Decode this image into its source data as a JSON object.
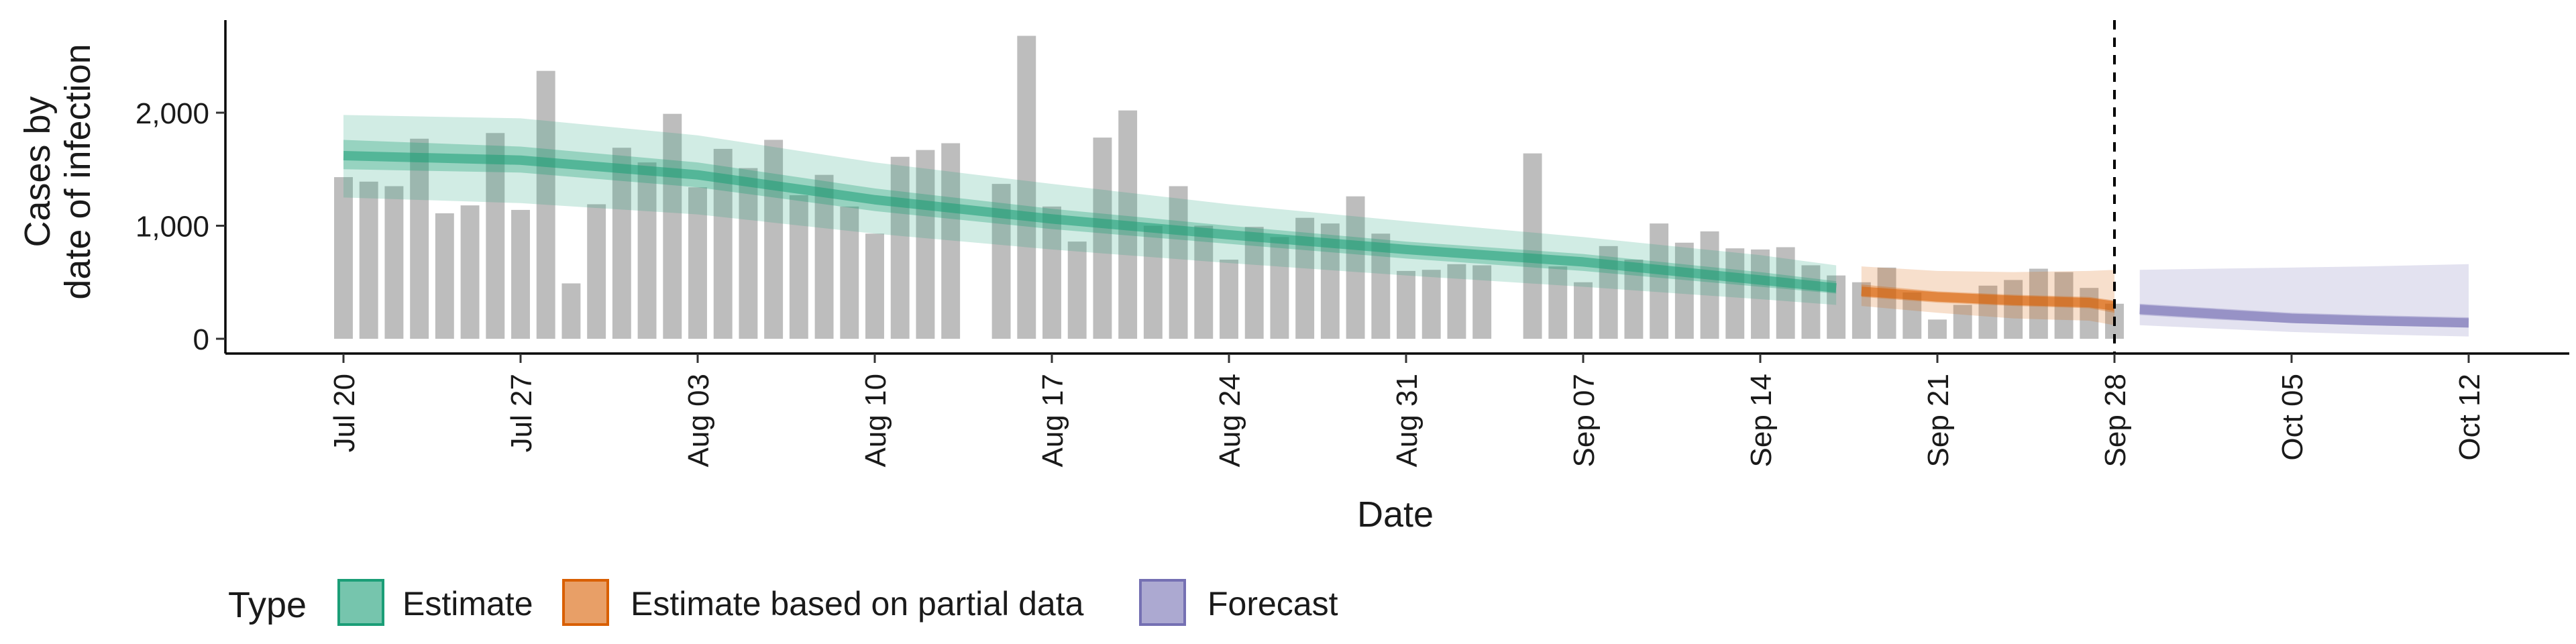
{
  "chart_data": {
    "type": "bar",
    "xlabel": "Date",
    "ylabel_line1": "Cases by",
    "ylabel_line2": "date of infection",
    "ylim": [
      0,
      2800
    ],
    "xlim": [
      "2020-07-20",
      "2020-10-12"
    ],
    "yticks": [
      0,
      1000,
      2000
    ],
    "ytick_labels": [
      "0",
      "1,000",
      "2,000"
    ],
    "xticks": [
      "2020-07-20",
      "2020-07-27",
      "2020-08-03",
      "2020-08-10",
      "2020-08-17",
      "2020-08-24",
      "2020-08-31",
      "2020-09-07",
      "2020-09-14",
      "2020-09-21",
      "2020-09-28",
      "2020-10-05",
      "2020-10-12"
    ],
    "xtick_labels": [
      "Jul 20",
      "Jul 27",
      "Aug 03",
      "Aug 10",
      "Aug 17",
      "Aug 24",
      "Aug 31",
      "Sep 07",
      "Sep 14",
      "Sep 21",
      "Sep 28",
      "Oct 05",
      "Oct 12"
    ],
    "forecast_date": "2020-09-28",
    "legend": {
      "title": "Type",
      "position": "bottom",
      "items": [
        {
          "label": "Estimate",
          "color": "#1b9e77"
        },
        {
          "label": "Estimate based on partial data",
          "color": "#d95f02"
        },
        {
          "label": "Forecast",
          "color": "#7570b3"
        }
      ]
    },
    "reported_cases": {
      "name": "Reported cases",
      "color": "#bdbdbd",
      "start_date": "2020-07-20",
      "values": [
        1430,
        1390,
        1350,
        1770,
        1110,
        1180,
        1820,
        1140,
        2370,
        490,
        1190,
        1690,
        1560,
        1990,
        1340,
        1680,
        1510,
        1760,
        1270,
        1450,
        1170,
        930,
        1610,
        1670,
        1730,
        0,
        1370,
        2680,
        1170,
        860,
        1780,
        2020,
        1000,
        1350,
        1000,
        700,
        990,
        900,
        1070,
        1020,
        1260,
        930,
        600,
        610,
        660,
        650,
        0,
        1640,
        640,
        500,
        820,
        700,
        1020,
        850,
        950,
        800,
        790,
        810,
        650,
        560,
        500,
        630,
        410,
        170,
        300,
        470,
        520,
        620,
        590,
        450,
        310
      ]
    },
    "series": [
      {
        "name": "Estimate",
        "color": "#1b9e77",
        "dates": [
          "2020-07-20",
          "2020-07-27",
          "2020-08-03",
          "2020-08-10",
          "2020-08-17",
          "2020-08-24",
          "2020-08-31",
          "2020-09-07",
          "2020-09-14",
          "2020-09-17"
        ],
        "median": [
          1620,
          1580,
          1450,
          1230,
          1060,
          920,
          790,
          680,
          520,
          450
        ],
        "lower_50": [
          1500,
          1470,
          1340,
          1130,
          970,
          840,
          710,
          600,
          460,
          400
        ],
        "upper_50": [
          1760,
          1700,
          1560,
          1330,
          1150,
          1000,
          860,
          750,
          590,
          510
        ],
        "lower_90": [
          1250,
          1200,
          1100,
          930,
          790,
          670,
          560,
          460,
          350,
          300
        ],
        "upper_90": [
          1980,
          1950,
          1800,
          1560,
          1370,
          1190,
          1040,
          900,
          740,
          650
        ]
      },
      {
        "name": "Estimate based on partial data",
        "color": "#d95f02",
        "dates": [
          "2020-09-18",
          "2020-09-21",
          "2020-09-24",
          "2020-09-27",
          "2020-09-28"
        ],
        "median": [
          420,
          370,
          340,
          320,
          290
        ],
        "lower_50": [
          370,
          320,
          290,
          270,
          230
        ],
        "upper_50": [
          480,
          420,
          390,
          370,
          340
        ],
        "lower_90": [
          290,
          230,
          180,
          160,
          120
        ],
        "upper_90": [
          640,
          600,
          590,
          600,
          610
        ]
      },
      {
        "name": "Forecast",
        "color": "#7570b3",
        "dates": [
          "2020-09-29",
          "2020-10-02",
          "2020-10-05",
          "2020-10-08",
          "2020-10-12"
        ],
        "median": [
          260,
          220,
          180,
          160,
          140
        ],
        "lower_50": [
          210,
          170,
          140,
          120,
          100
        ],
        "upper_50": [
          310,
          270,
          230,
          210,
          190
        ],
        "lower_90": [
          120,
          90,
          60,
          40,
          20
        ],
        "upper_90": [
          610,
          620,
          630,
          640,
          660
        ]
      }
    ]
  }
}
